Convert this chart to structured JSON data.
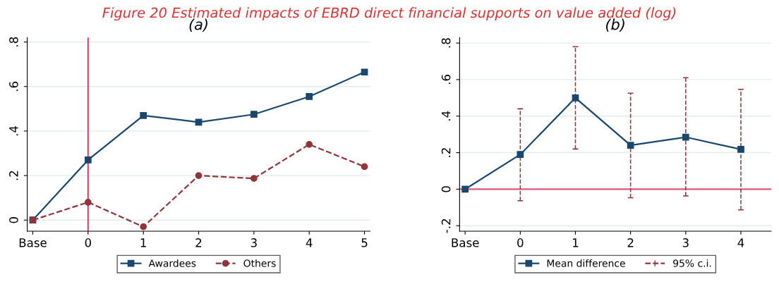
{
  "chart_data": [
    {
      "type": "line",
      "title": "(a)",
      "annotations": [
        "Figure 20 Estimated impacts of EBRD direct financial supports on value added (log)"
      ],
      "categories": [
        "Base",
        "0",
        "1",
        "2",
        "3",
        "4",
        "5"
      ],
      "series": [
        {
          "name": "Awardees",
          "color": "#1a476f",
          "marker": "square",
          "line_style": "solid",
          "values": [
            0,
            0.27,
            0.47,
            0.44,
            0.475,
            0.555,
            0.665
          ]
        },
        {
          "name": "Others",
          "color": "#90353b",
          "marker": "circle",
          "line_style": "dashed",
          "values": [
            0,
            0.08,
            -0.03,
            0.2,
            0.187,
            0.34,
            0.24
          ]
        }
      ],
      "ylim": [
        -0.05,
        0.82
      ],
      "yticks": [
        {
          "value": 0,
          "label": "0"
        },
        {
          "value": 0.2,
          "label": ".2"
        },
        {
          "value": 0.4,
          "label": ".4"
        },
        {
          "value": 0.6,
          "label": ".6"
        },
        {
          "value": 0.8,
          "label": ".8"
        }
      ],
      "ref_lines": [
        {
          "axis": "x",
          "value": "0",
          "color": "#c8264f"
        }
      ],
      "grid": "y",
      "legend": "bottom"
    },
    {
      "type": "line",
      "title": "(b)",
      "annotations": [
        "95% c.i."
      ],
      "categories": [
        "Base",
        "0",
        "1",
        "2",
        "3",
        "4"
      ],
      "series": [
        {
          "name": "Mean difference",
          "color": "#1a476f",
          "marker": "square",
          "line_style": "solid",
          "values": [
            0,
            0.19,
            0.5,
            0.24,
            0.285,
            0.218
          ],
          "errors": [
            null,
            [
              -0.063,
              0.44
            ],
            [
              0.22,
              0.78
            ],
            [
              -0.047,
              0.525
            ],
            [
              -0.037,
              0.61
            ],
            [
              -0.113,
              0.547
            ]
          ]
        }
      ],
      "ylim": [
        -0.23,
        0.83
      ],
      "yticks": [
        {
          "value": -0.2,
          "label": "-.2"
        },
        {
          "value": 0,
          "label": "0"
        },
        {
          "value": 0.2,
          "label": ".2"
        },
        {
          "value": 0.4,
          "label": ".4"
        },
        {
          "value": 0.6,
          "label": ".6"
        },
        {
          "value": 0.8,
          "label": ".8"
        }
      ],
      "ref_lines": [
        {
          "axis": "y",
          "value": 0,
          "color": "#e0567a"
        }
      ],
      "grid": "y",
      "legend": "bottom"
    }
  ]
}
